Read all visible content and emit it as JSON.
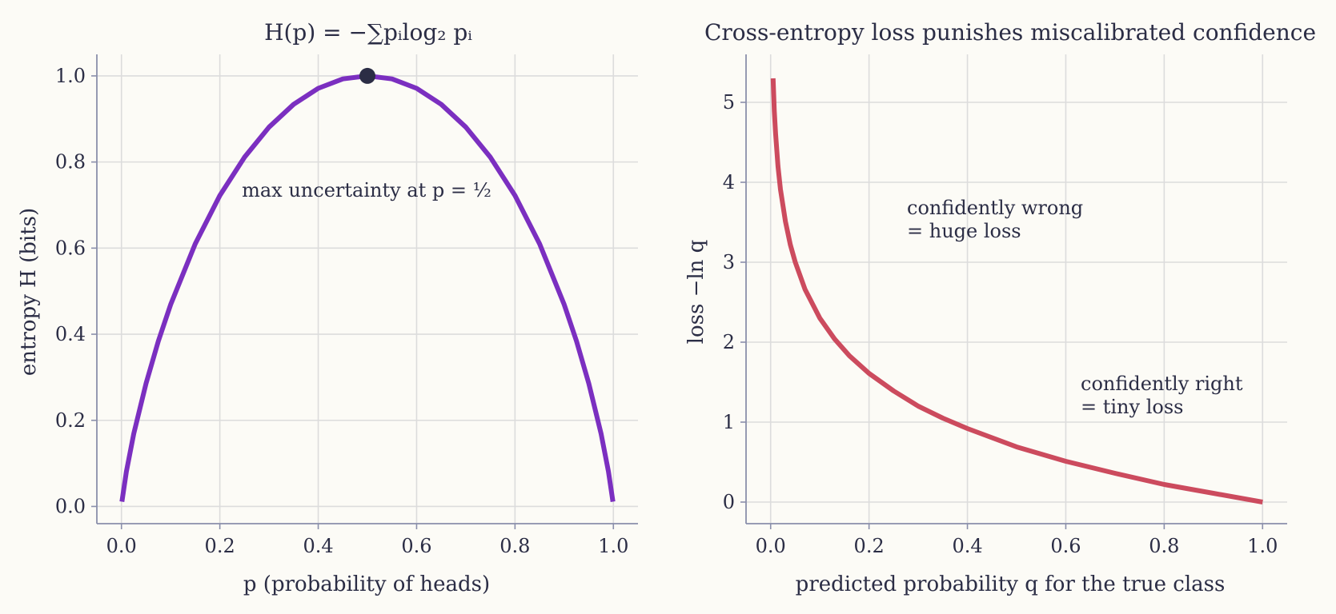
{
  "colors": {
    "entropy_curve": "#7b2fc0",
    "loss_curve": "#cc4b5e",
    "max_marker": "#2b2d45",
    "grid": "#dcdcdc",
    "spine": "#8a8fab",
    "text": "#2b2d45",
    "background": "#fcfbf6"
  },
  "chart_data": [
    {
      "type": "line",
      "title": "H(p) = −∑pᵢlog₂ pᵢ",
      "xlabel": "p (probability of heads)",
      "ylabel": "entropy H (bits)",
      "xlim": [
        -0.05,
        1.05
      ],
      "ylim": [
        -0.04,
        1.05
      ],
      "xticks": [
        0.0,
        0.2,
        0.4,
        0.6,
        0.8,
        1.0
      ],
      "xtick_labels": [
        "0.0",
        "0.2",
        "0.4",
        "0.6",
        "0.8",
        "1.0"
      ],
      "yticks": [
        0.0,
        0.2,
        0.4,
        0.6,
        0.8,
        1.0
      ],
      "ytick_labels": [
        "0.0",
        "0.2",
        "0.4",
        "0.6",
        "0.8",
        "1.0"
      ],
      "grid": true,
      "series": [
        {
          "x": [
            0.001,
            0.01,
            0.025,
            0.05,
            0.075,
            0.1,
            0.15,
            0.2,
            0.25,
            0.3,
            0.35,
            0.4,
            0.45,
            0.5,
            0.55,
            0.6,
            0.65,
            0.7,
            0.75,
            0.8,
            0.85,
            0.9,
            0.925,
            0.95,
            0.975,
            0.99,
            0.999
          ],
          "y": [
            0.011,
            0.081,
            0.169,
            0.286,
            0.384,
            0.469,
            0.61,
            0.722,
            0.811,
            0.881,
            0.934,
            0.971,
            0.993,
            1.0,
            0.993,
            0.971,
            0.934,
            0.881,
            0.811,
            0.722,
            0.61,
            0.469,
            0.384,
            0.286,
            0.169,
            0.081,
            0.011
          ]
        }
      ],
      "marker": {
        "x": 0.5,
        "y": 1.0
      },
      "annotation": {
        "text": "max uncertainty at p = ½",
        "x": 0.5,
        "y": 0.74
      }
    },
    {
      "type": "line",
      "title": "Cross-entropy loss punishes miscalibrated confidence",
      "xlabel": "predicted probability q for the true class",
      "ylabel": "loss −ln q",
      "xlim": [
        -0.05,
        1.05
      ],
      "ylim": [
        -0.27,
        5.6
      ],
      "xticks": [
        0.0,
        0.2,
        0.4,
        0.6,
        0.8,
        1.0
      ],
      "xtick_labels": [
        "0.0",
        "0.2",
        "0.4",
        "0.6",
        "0.8",
        "1.0"
      ],
      "yticks": [
        0,
        1,
        2,
        3,
        4,
        5
      ],
      "ytick_labels": [
        "0",
        "1",
        "2",
        "3",
        "4",
        "5"
      ],
      "grid": true,
      "series": [
        {
          "x": [
            0.005,
            0.0075,
            0.01,
            0.015,
            0.02,
            0.03,
            0.04,
            0.05,
            0.07,
            0.1,
            0.13,
            0.16,
            0.2,
            0.25,
            0.3,
            0.35,
            0.4,
            0.5,
            0.6,
            0.7,
            0.8,
            0.9,
            1.0
          ],
          "y": [
            5.3,
            4.89,
            4.61,
            4.2,
            3.91,
            3.51,
            3.22,
            3.0,
            2.66,
            2.3,
            2.04,
            1.83,
            1.61,
            1.39,
            1.2,
            1.05,
            0.92,
            0.69,
            0.51,
            0.36,
            0.22,
            0.11,
            0.0
          ]
        }
      ],
      "annotations": [
        {
          "lines": [
            "confidently wrong",
            "= huge loss"
          ],
          "x": 0.28,
          "y": 3.6
        },
        {
          "lines": [
            "confidently right",
            "= tiny loss"
          ],
          "x": 0.63,
          "y": 1.4
        }
      ]
    }
  ]
}
